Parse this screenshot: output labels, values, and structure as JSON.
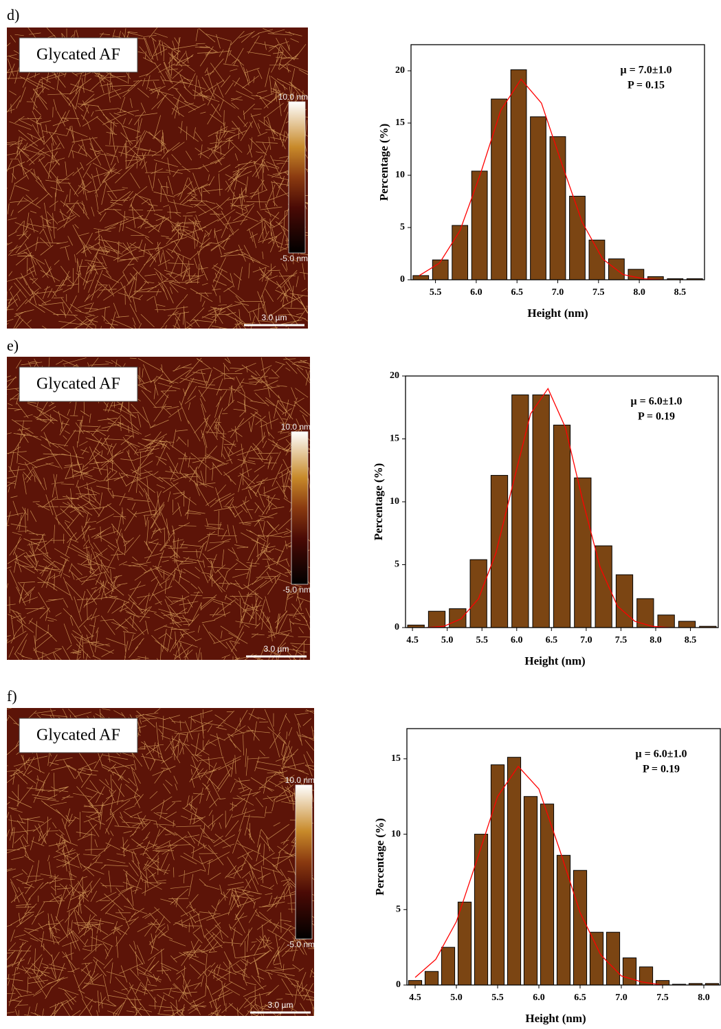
{
  "panels": [
    {
      "label": "d)",
      "tag": "Glycated AF",
      "colorbar_max": "10.0 nm",
      "colorbar_min": "-5.0 nm",
      "scale_bar": "3.0 µm"
    },
    {
      "label": "e)",
      "tag": "Glycated AF",
      "colorbar_max": "10.0 nm",
      "colorbar_min": "-5.0 nm",
      "scale_bar": "3.0 µm"
    },
    {
      "label": "f)",
      "tag": "Glycated AF",
      "colorbar_max": "10.0 nm",
      "colorbar_min": "-5.0 nm",
      "scale_bar": "3.0 µm"
    }
  ],
  "chart_data": [
    {
      "type": "histogram",
      "x_label": "Height (nm)",
      "y_label": "Percentage (%)",
      "annotations": [
        "μ = 7.0±1.0",
        "P = 0.15"
      ],
      "bins": [
        5.2,
        5.44,
        5.68,
        5.92,
        6.16,
        6.4,
        6.64,
        6.88,
        7.12,
        7.36,
        7.6,
        7.84,
        8.08,
        8.32,
        8.56,
        8.8
      ],
      "values": [
        0.4,
        1.9,
        5.2,
        10.4,
        17.3,
        20.1,
        15.6,
        13.7,
        8.0,
        3.8,
        2.0,
        1.0,
        0.3,
        0.1,
        0.1
      ],
      "color": "#7b4513",
      "fit": {
        "color": "#ff0000",
        "x": [
          5.3,
          5.55,
          5.8,
          6.05,
          6.3,
          6.55,
          6.8,
          7.05,
          7.3,
          7.55,
          7.8,
          8.05,
          8.3
        ],
        "values": [
          0.4,
          1.6,
          4.7,
          10.1,
          16.2,
          19.2,
          16.9,
          11.1,
          5.5,
          2.0,
          0.5,
          0.1,
          0.0
        ]
      },
      "xlim": [
        5.2,
        8.8
      ],
      "ylim": [
        0,
        22.5
      ],
      "xticks": [
        5.5,
        {
          "value": 6,
          "label": "6.0"
        },
        6.5,
        {
          "value": 7,
          "label": "7.0"
        },
        7.5,
        {
          "value": 8,
          "label": "8.0"
        },
        8.5
      ],
      "yticks": [
        0,
        5,
        10,
        15,
        20
      ]
    },
    {
      "type": "histogram",
      "x_label": "Height (nm)",
      "y_label": "Percentage (%)",
      "annotations": [
        "μ = 6.0±1.0",
        "P = 0.19"
      ],
      "bins": [
        4.4,
        4.7,
        5.0,
        5.3,
        5.6,
        5.9,
        6.2,
        6.5,
        6.8,
        7.1,
        7.4,
        7.7,
        8.0,
        8.3,
        8.6,
        8.9
      ],
      "values": [
        0.2,
        1.3,
        1.5,
        5.4,
        12.1,
        18.5,
        18.5,
        16.1,
        11.9,
        6.5,
        4.2,
        2.3,
        1.0,
        0.5,
        0.1
      ],
      "color": "#7b4513",
      "fit": {
        "color": "#ff0000",
        "x": [
          4.7,
          4.95,
          5.2,
          5.45,
          5.7,
          5.95,
          6.2,
          6.45,
          6.7,
          6.95,
          7.2,
          7.45,
          7.7,
          7.95,
          8.2
        ],
        "values": [
          0.0,
          0.1,
          0.7,
          2.3,
          5.9,
          11.5,
          17.0,
          19.0,
          15.9,
          10.1,
          4.8,
          1.7,
          0.5,
          0.1,
          0.0
        ]
      },
      "xlim": [
        4.4,
        8.9
      ],
      "ylim": [
        0,
        20
      ],
      "xticks": [
        4.5,
        {
          "value": 5,
          "label": "5.0"
        },
        5.5,
        {
          "value": 6,
          "label": "6.0"
        },
        6.5,
        {
          "value": 7,
          "label": "7.0"
        },
        7.5,
        {
          "value": 8,
          "label": "8.0"
        },
        8.5
      ],
      "yticks": [
        0,
        5,
        10,
        15,
        20
      ]
    },
    {
      "type": "histogram",
      "x_label": "Height (nm)",
      "y_label": "Percentage (%)",
      "annotations": [
        "μ = 6.0±1.0",
        "P = 0.19"
      ],
      "bins": [
        4.4,
        4.6,
        4.8,
        5.0,
        5.2,
        5.4,
        5.6,
        5.8,
        6.0,
        6.2,
        6.4,
        6.6,
        6.8,
        7.0,
        7.2,
        7.4,
        7.6,
        7.8,
        8.0,
        8.2
      ],
      "values": [
        0.3,
        0.9,
        2.5,
        5.5,
        10.0,
        14.6,
        15.1,
        12.5,
        12.0,
        8.6,
        7.6,
        3.5,
        3.5,
        1.8,
        1.2,
        0.3,
        0.05,
        0.1,
        0.1
      ],
      "color": "#7b4513",
      "fit": {
        "color": "#ff0000",
        "x": [
          4.5,
          4.75,
          5.0,
          5.25,
          5.5,
          5.75,
          6.0,
          6.25,
          6.5,
          6.75,
          7.0,
          7.25,
          7.5
        ],
        "values": [
          0.5,
          1.7,
          4.2,
          8.3,
          12.5,
          14.5,
          13.0,
          9.0,
          4.8,
          2.0,
          0.6,
          0.2,
          0.0
        ]
      },
      "xlim": [
        4.4,
        8.2
      ],
      "ylim": [
        0,
        17
      ],
      "xticks": [
        4.5,
        {
          "value": 5,
          "label": "5.0"
        },
        5.5,
        {
          "value": 6,
          "label": "6.0"
        },
        6.5,
        {
          "value": 7,
          "label": "7.0"
        },
        7.5,
        {
          "value": 8,
          "label": "8.0"
        }
      ],
      "yticks": [
        0,
        5,
        10,
        15
      ]
    }
  ]
}
